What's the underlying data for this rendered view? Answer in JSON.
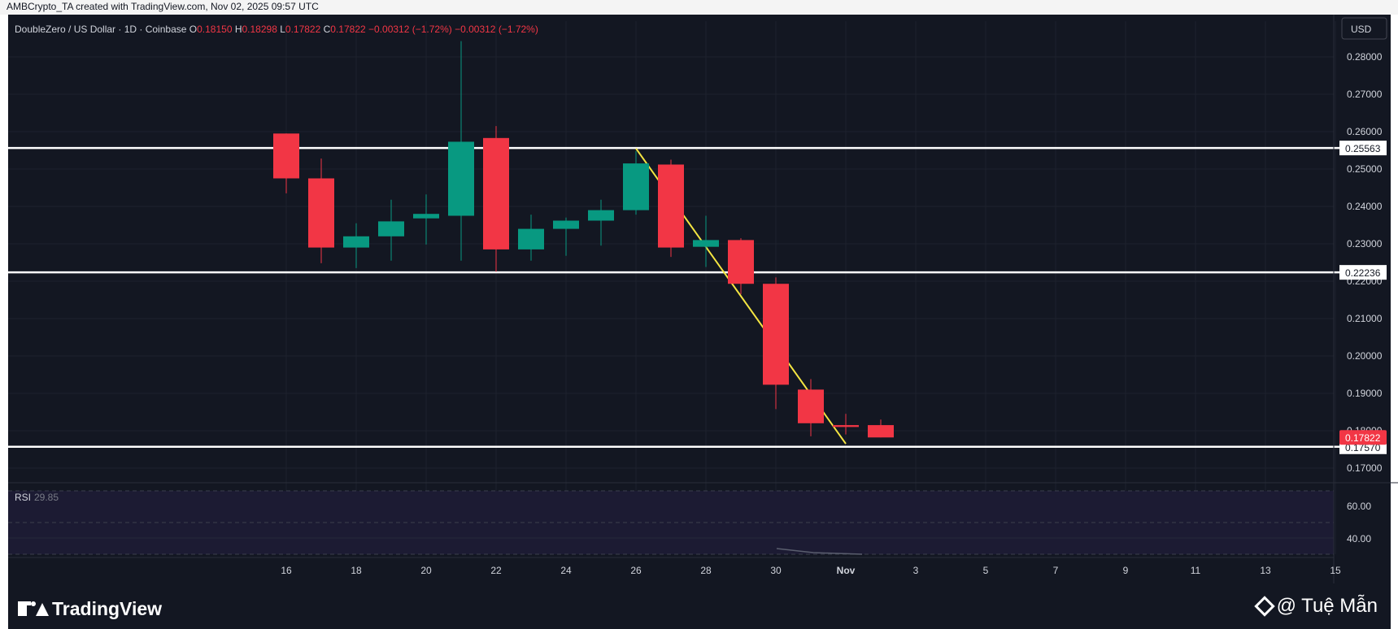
{
  "header": {
    "text": "AMBCrypto_TA created with TradingView.com, Nov 02, 2025 09:57 UTC"
  },
  "legend": {
    "symbol": "DoubleZero / US Dollar · 1D · Coinbase",
    "o_label": "O",
    "o_value": "0.18150",
    "h_label": "H",
    "h_value": "0.18298",
    "l_label": "L",
    "l_value": "0.17822",
    "c_label": "C",
    "c_value": "0.17822",
    "change": "−0.00312 (−1.72%)",
    "change2": "−0.00312 (−1.72%)"
  },
  "currency": "USD",
  "rsi": {
    "label": "RSI",
    "value": "29.85",
    "ticks": [
      "60.00",
      "40.00"
    ]
  },
  "colors": {
    "up": "#089981",
    "down": "#f23645",
    "bg": "#131722",
    "grid": "#1e222d",
    "trend": "#f5e642",
    "text": "#d1d4dc"
  },
  "footer": {
    "brand": "TradingView",
    "credit": "@ Tuệ Mẫn"
  },
  "chart_data": {
    "type": "candlestick",
    "ylim": [
      0.165,
      0.285
    ],
    "y_ticks": [
      "0.28000",
      "0.27000",
      "0.26000",
      "0.25000",
      "0.24000",
      "0.23000",
      "0.22000",
      "0.21000",
      "0.20000",
      "0.19000",
      "0.18000",
      "0.17000"
    ],
    "x_ticks": [
      "16",
      "18",
      "20",
      "22",
      "24",
      "26",
      "28",
      "30",
      "Nov",
      "3",
      "5",
      "7",
      "9",
      "11",
      "13",
      "15"
    ],
    "candles": [
      {
        "date": "Oct 16",
        "o": 0.2595,
        "h": 0.2595,
        "l": 0.2435,
        "c": 0.2475
      },
      {
        "date": "Oct 17",
        "o": 0.2475,
        "h": 0.2528,
        "l": 0.2248,
        "c": 0.229
      },
      {
        "date": "Oct 18",
        "o": 0.229,
        "h": 0.2355,
        "l": 0.2235,
        "c": 0.232
      },
      {
        "date": "Oct 19",
        "o": 0.232,
        "h": 0.2418,
        "l": 0.2255,
        "c": 0.236
      },
      {
        "date": "Oct 20",
        "o": 0.2368,
        "h": 0.2432,
        "l": 0.2298,
        "c": 0.238
      },
      {
        "date": "Oct 21",
        "o": 0.2375,
        "h": 0.2842,
        "l": 0.2255,
        "c": 0.2573
      },
      {
        "date": "Oct 22",
        "o": 0.2583,
        "h": 0.2615,
        "l": 0.2225,
        "c": 0.2285
      },
      {
        "date": "Oct 23",
        "o": 0.2285,
        "h": 0.2378,
        "l": 0.2255,
        "c": 0.234
      },
      {
        "date": "Oct 24",
        "o": 0.234,
        "h": 0.237,
        "l": 0.2268,
        "c": 0.2362
      },
      {
        "date": "Oct 25",
        "o": 0.2362,
        "h": 0.2418,
        "l": 0.2295,
        "c": 0.239
      },
      {
        "date": "Oct 26",
        "o": 0.239,
        "h": 0.2548,
        "l": 0.2378,
        "c": 0.2515
      },
      {
        "date": "Oct 27",
        "o": 0.2512,
        "h": 0.2525,
        "l": 0.2265,
        "c": 0.229
      },
      {
        "date": "Oct 28",
        "o": 0.2292,
        "h": 0.2375,
        "l": 0.2238,
        "c": 0.231
      },
      {
        "date": "Oct 29",
        "o": 0.231,
        "h": 0.2315,
        "l": 0.2165,
        "c": 0.2193
      },
      {
        "date": "Oct 30",
        "o": 0.2193,
        "h": 0.221,
        "l": 0.1858,
        "c": 0.1923
      },
      {
        "date": "Oct 31",
        "o": 0.191,
        "h": 0.1938,
        "l": 0.1785,
        "c": 0.182
      },
      {
        "date": "Nov 1",
        "o": 0.1815,
        "h": 0.1845,
        "l": 0.179,
        "c": 0.181
      },
      {
        "date": "Nov 2",
        "o": 0.1815,
        "h": 0.183,
        "l": 0.1782,
        "c": 0.1782
      }
    ],
    "levels": [
      {
        "value": 0.25563,
        "label": "0.25563"
      },
      {
        "value": 0.22236,
        "label": "0.22236"
      },
      {
        "value": 0.1757,
        "label": "0.17570"
      }
    ],
    "current_price": {
      "value": 0.17822,
      "label": "0.17822"
    },
    "trendline": [
      {
        "date": "Oct 26",
        "price": 0.2555
      },
      {
        "date": "Nov 1",
        "price": 0.1765
      }
    ]
  }
}
